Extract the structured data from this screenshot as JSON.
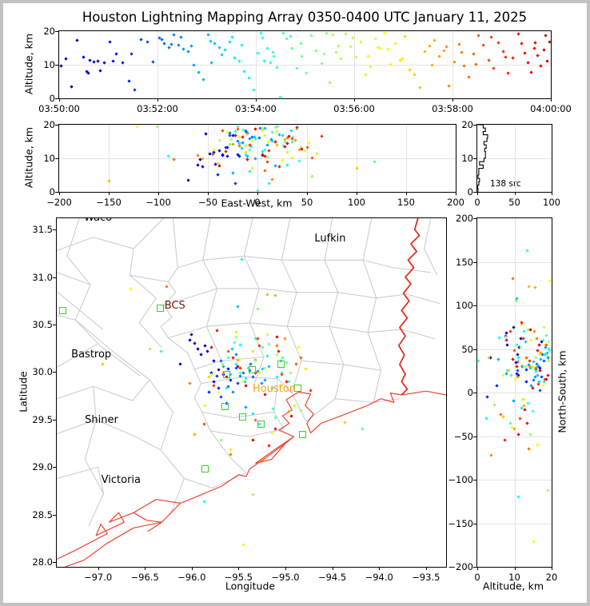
{
  "title": "Houston Lightning Mapping Array 0350-0400 UTC January 11, 2025",
  "colors": {
    "station_marker": "#3ecc2e",
    "coastline": "#ee4433",
    "state_border": "#e03020",
    "county_lines": "#c9c9c9",
    "gridline": "#e4e4e4",
    "bcs_label": "#7a1a10",
    "houston_label": "#ffa010",
    "city_label_default": "#000000",
    "histogram_line": "#000000",
    "figure_border": "#c2c2c2"
  },
  "chart_data": {
    "type": "scatter",
    "colormap": "jet (colored by time, 0350 UTC blue to 0400 UTC red)",
    "source_count": 138,
    "panels": {
      "time": {
        "ylabel": "Altitude, km",
        "xtick_labels": [
          "03:50:00",
          "03:52:00",
          "03:54:00",
          "03:56:00",
          "03:58:00",
          "04:00:00"
        ],
        "yticks": [
          0,
          10,
          20
        ],
        "xlim_seconds": [
          0,
          600
        ],
        "ylim": [
          0,
          20
        ],
        "grid": true
      },
      "ew": {
        "xlabel": "East-West, km",
        "ylabel": "Altitude, km",
        "xticks": [
          -200,
          -150,
          -100,
          -50,
          0,
          50,
          100,
          150,
          200
        ],
        "yticks": [
          0,
          10,
          20
        ],
        "xlim": [
          -200,
          200
        ],
        "ylim": [
          0,
          20
        ],
        "grid": true
      },
      "hist": {
        "annotation": "138 src",
        "xticks": [
          0,
          50,
          100
        ],
        "yticks": [
          0,
          10,
          20
        ],
        "xlim": [
          0,
          100
        ],
        "ylim": [
          0,
          20
        ],
        "bin_km": 1
      },
      "map": {
        "xlabel": "Longitude",
        "ylabel": "Latitude",
        "xticks": [
          -97.0,
          -96.5,
          -96.0,
          -95.5,
          -95.0,
          -94.5,
          -94.0,
          -93.5
        ],
        "yticks": [
          31.5,
          31.0,
          30.5,
          30.0,
          29.5,
          29.0,
          28.5,
          28.0
        ],
        "lon_lim": [
          -97.44,
          -93.285
        ],
        "lat_lim": [
          27.95,
          31.62
        ],
        "grid": false
      },
      "ns": {
        "xlabel": "Altitude, km",
        "ylabel": "North-South, km",
        "xticks": [
          0,
          10,
          20
        ],
        "yticks": [
          200,
          150,
          100,
          50,
          0,
          -50,
          -100,
          -150,
          -200
        ],
        "xlim": [
          0,
          20
        ],
        "ylim": [
          -200,
          200
        ],
        "grid": true
      }
    },
    "map_center": {
      "lon": -95.4,
      "lat": 29.72,
      "km_per_deg_lon": 96.7,
      "km_per_deg_lat": 111.0
    },
    "cities": [
      {
        "name": "Waco",
        "lon": -97.15,
        "lat": 31.575,
        "color": "#000000"
      },
      {
        "name": "Lufkin",
        "lon": -94.69,
        "lat": 31.36,
        "color": "#000000"
      },
      {
        "name": "BCS",
        "lon": -96.29,
        "lat": 30.655,
        "color": "#7a1a10"
      },
      {
        "name": "Bastrop",
        "lon": -97.285,
        "lat": 30.135,
        "color": "#000000"
      },
      {
        "name": "Houston",
        "lon": -95.35,
        "lat": 29.775,
        "color": "#ffa010"
      },
      {
        "name": "Shiner",
        "lon": -97.14,
        "lat": 29.45,
        "color": "#000000"
      },
      {
        "name": "Victoria",
        "lon": -96.965,
        "lat": 28.82,
        "color": "#000000"
      }
    ],
    "stations_lonlat": [
      [
        -97.37,
        30.64
      ],
      [
        -96.33,
        30.67
      ],
      [
        -95.62,
        29.97
      ],
      [
        -95.35,
        30.02
      ],
      [
        -95.04,
        30.08
      ],
      [
        -94.86,
        29.83
      ],
      [
        -95.64,
        29.63
      ],
      [
        -95.45,
        29.52
      ],
      [
        -95.26,
        29.45
      ],
      [
        -94.81,
        29.34
      ],
      [
        -95.85,
        28.98
      ]
    ],
    "sources_txyz": [
      [
        2,
        -58,
        75,
        9.7
      ],
      [
        8,
        -44,
        62,
        11.8
      ],
      [
        15,
        -70,
        40,
        3.5
      ],
      [
        22,
        -52,
        58,
        17.3
      ],
      [
        30,
        -38,
        30,
        12.2
      ],
      [
        34,
        -60,
        68,
        7.9
      ],
      [
        36,
        -55,
        65,
        7.6
      ],
      [
        38,
        -48,
        52,
        11.2
      ],
      [
        42,
        -35,
        44,
        10.8
      ],
      [
        47,
        -35,
        20,
        11.0
      ],
      [
        50,
        -42,
        55,
        8.1
      ],
      [
        55,
        -30,
        34,
        10.5
      ],
      [
        62,
        -25,
        28,
        16.9
      ],
      [
        66,
        -20,
        35,
        11.1
      ],
      [
        70,
        -30,
        12,
        13.3
      ],
      [
        78,
        -18,
        22,
        10.6
      ],
      [
        85,
        -40,
        8,
        5.2
      ],
      [
        88,
        -32,
        26,
        13.2
      ],
      [
        92,
        -22,
        -5,
        2.6
      ],
      [
        100,
        -10,
        18,
        17.4
      ],
      [
        108,
        -28,
        2,
        16.8
      ],
      [
        115,
        5,
        25,
        10.9
      ],
      [
        122,
        -12,
        36,
        18.0
      ],
      [
        125,
        -28,
        44,
        17.6
      ],
      [
        128,
        -5,
        30,
        16.4
      ],
      [
        134,
        -20,
        14,
        15.2
      ],
      [
        137,
        2,
        33,
        16.0
      ],
      [
        140,
        3,
        40,
        19.0
      ],
      [
        146,
        -8,
        26,
        15.8
      ],
      [
        149,
        -12,
        52,
        18.3
      ],
      [
        152,
        -15,
        8,
        14.6
      ],
      [
        158,
        10,
        32,
        13.9
      ],
      [
        161,
        14,
        18,
        15.5
      ],
      [
        164,
        -2,
        -10,
        9.8
      ],
      [
        170,
        18,
        22,
        7.8
      ],
      [
        176,
        -25,
        38,
        5.6
      ],
      [
        182,
        8,
        45,
        18.9
      ],
      [
        185,
        22,
        38,
        17.0
      ],
      [
        186,
        -10,
        108,
        10.7
      ],
      [
        190,
        -3,
        20,
        16.2
      ],
      [
        196,
        15,
        35,
        15.1
      ],
      [
        199,
        -16,
        58,
        13.0
      ],
      [
        202,
        -18,
        28,
        14.4
      ],
      [
        208,
        25,
        12,
        16.7
      ],
      [
        211,
        34,
        44,
        18.2
      ],
      [
        214,
        5,
        -18,
        12.0
      ],
      [
        220,
        -12,
        40,
        11.0
      ],
      [
        223,
        -2,
        24,
        15.9
      ],
      [
        226,
        30,
        25,
        8.0
      ],
      [
        232,
        -8,
        63,
        6.0
      ],
      [
        238,
        12,
        -30,
        2.5
      ],
      [
        242,
        -6,
        163,
        13.5
      ],
      [
        246,
        20,
        50,
        19.3
      ],
      [
        248,
        -22,
        12,
        17.9
      ],
      [
        250,
        -45,
        -120,
        11.0
      ],
      [
        254,
        35,
        30,
        14.8
      ],
      [
        258,
        -90,
        55,
        10.7
      ],
      [
        261,
        26,
        -12,
        13.7
      ],
      [
        262,
        8,
        70,
        12.6
      ],
      [
        266,
        42,
        20,
        9.2
      ],
      [
        270,
        0,
        36,
        0.3
      ],
      [
        274,
        -20,
        48,
        19.4
      ],
      [
        278,
        15,
        60,
        17.8
      ],
      [
        282,
        -14,
        66,
        18.5
      ],
      [
        284,
        28,
        -22,
        15.0
      ],
      [
        290,
        118,
        -35,
        9.0
      ],
      [
        295,
        36,
        48,
        16.3
      ],
      [
        296,
        -8,
        30,
        12.4
      ],
      [
        302,
        22,
        64,
        7.6
      ],
      [
        308,
        40,
        42,
        18.8
      ],
      [
        314,
        -28,
        -48,
        14.2
      ],
      [
        320,
        10,
        105,
        10.4
      ],
      [
        323,
        44,
        30,
        13.1
      ],
      [
        326,
        -101,
        58,
        19.3
      ],
      [
        330,
        55,
        -14,
        4.6
      ],
      [
        334,
        5,
        -112,
        19.0
      ],
      [
        338,
        -12,
        72,
        13.6
      ],
      [
        341,
        -26,
        40,
        15.7
      ],
      [
        344,
        30,
        52,
        11.8
      ],
      [
        350,
        18,
        36,
        19.2
      ],
      [
        356,
        -38,
        28,
        15.4
      ],
      [
        359,
        20,
        75,
        18.0
      ],
      [
        362,
        48,
        -8,
        12.2
      ],
      [
        368,
        8,
        44,
        16.9
      ],
      [
        374,
        -5,
        20,
        7.0
      ],
      [
        377,
        -44,
        -8,
        12.5
      ],
      [
        380,
        25,
        -40,
        9.4
      ],
      [
        386,
        -30,
        8,
        17.7
      ],
      [
        389,
        -5,
        -171,
        15.2
      ],
      [
        392,
        12,
        30,
        14.9
      ],
      [
        398,
        -121,
        128,
        19.4
      ],
      [
        401,
        52,
        60,
        14.6
      ],
      [
        404,
        35,
        15,
        10.2
      ],
      [
        410,
        -18,
        -60,
        16.3
      ],
      [
        416,
        60,
        35,
        11.2
      ],
      [
        419,
        -12,
        78,
        11.9
      ],
      [
        422,
        5,
        55,
        18.4
      ],
      [
        428,
        -40,
        25,
        8.5
      ],
      [
        434,
        100,
        -28,
        7.0
      ],
      [
        440,
        -150,
        40,
        3.2
      ],
      [
        446,
        20,
        122,
        13.9
      ],
      [
        452,
        28,
        121,
        15.6
      ],
      [
        455,
        -55,
        -42,
        9.9
      ],
      [
        458,
        -10,
        45,
        17.2
      ],
      [
        464,
        42,
        -15,
        12.6
      ],
      [
        470,
        -25,
        30,
        14.1
      ],
      [
        473,
        38,
        70,
        15.3
      ],
      [
        476,
        15,
        -72,
        3.8
      ],
      [
        482,
        -60,
        18,
        10.9
      ],
      [
        488,
        30,
        62,
        16.0
      ],
      [
        491,
        -18,
        -65,
        13.8
      ],
      [
        494,
        -84,
        131,
        9.6
      ],
      [
        500,
        8,
        -25,
        6.4
      ],
      [
        506,
        50,
        40,
        13.2
      ],
      [
        509,
        55,
        48,
        10.1
      ],
      [
        512,
        -20,
        55,
        18.6
      ],
      [
        518,
        35,
        28,
        15.8
      ],
      [
        524,
        -45,
        -30,
        11.4
      ],
      [
        527,
        -35,
        15,
        18.1
      ],
      [
        530,
        10,
        70,
        9.0
      ],
      [
        536,
        65,
        10,
        16.5
      ],
      [
        542,
        -8,
        36,
        14.0
      ],
      [
        545,
        12,
        62,
        12.3
      ],
      [
        548,
        22,
        -55,
        7.4
      ],
      [
        554,
        -32,
        80,
        12.0
      ],
      [
        560,
        40,
        20,
        19.1
      ],
      [
        564,
        -15,
        48,
        16.2
      ],
      [
        568,
        28,
        -35,
        13.4
      ],
      [
        572,
        8,
        30,
        10.6
      ],
      [
        576,
        -38,
        60,
        7.8
      ],
      [
        580,
        18,
        5,
        15.0
      ],
      [
        581,
        32,
        55,
        16.6
      ],
      [
        584,
        45,
        -20,
        12.8
      ],
      [
        588,
        -10,
        38,
        9.6
      ],
      [
        592,
        30,
        72,
        14.4
      ],
      [
        594,
        -2,
        15,
        18.7
      ],
      [
        596,
        5,
        -48,
        11.0
      ],
      [
        599,
        -22,
        25,
        16.8
      ]
    ]
  }
}
